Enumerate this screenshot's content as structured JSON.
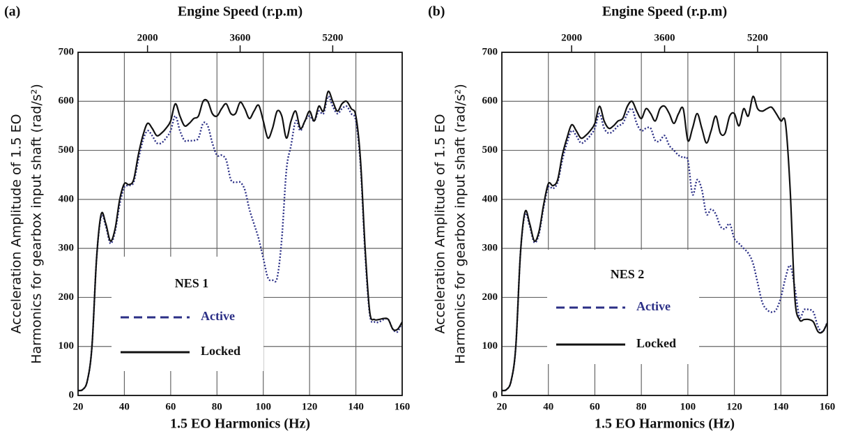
{
  "chart_data": [
    {
      "type": "line",
      "label": "(a)",
      "top_xlabel": "Engine Speed (r.p.m)",
      "xlabel": "1.5 EO Harmonics (Hz)",
      "ylabel": [
        "Acceleration Amplitude of 1.5 EO",
        "Harmonics for gearbox input shaft (rad/s²)"
      ],
      "legend_title": "NES 1",
      "grid": true,
      "xlim": [
        20,
        160
      ],
      "xticks": [
        20,
        40,
        60,
        80,
        100,
        120,
        140,
        160
      ],
      "x2lim": [
        800,
        6400
      ],
      "x2ticks": [
        2000,
        3600,
        5200
      ],
      "ylim": [
        0,
        700
      ],
      "yticks": [
        0,
        100,
        200,
        300,
        400,
        500,
        600,
        700
      ],
      "x": [
        20,
        22,
        24,
        26,
        28,
        30,
        32,
        34,
        36,
        38,
        40,
        42,
        44,
        46,
        48,
        50,
        52,
        54,
        56,
        58,
        60,
        62,
        64,
        66,
        68,
        70,
        72,
        74,
        76,
        78,
        80,
        82,
        84,
        86,
        88,
        90,
        92,
        94,
        96,
        98,
        100,
        102,
        104,
        106,
        108,
        110,
        112,
        114,
        116,
        118,
        120,
        122,
        124,
        126,
        128,
        130,
        132,
        134,
        136,
        138,
        140,
        142,
        144,
        146,
        148,
        150,
        152,
        154,
        156,
        158,
        160
      ],
      "series": [
        {
          "name": "Active",
          "color": "#2b2f86",
          "style": "dotted",
          "values": [
            10,
            12,
            30,
            100,
            280,
            365,
            345,
            310,
            335,
            390,
            425,
            428,
            435,
            480,
            520,
            540,
            530,
            515,
            515,
            525,
            540,
            570,
            540,
            520,
            520,
            520,
            525,
            555,
            550,
            515,
            490,
            490,
            480,
            440,
            435,
            435,
            420,
            380,
            350,
            320,
            280,
            240,
            235,
            240,
            320,
            460,
            510,
            560,
            540,
            560,
            570,
            560,
            580,
            575,
            610,
            590,
            575,
            585,
            590,
            575,
            560,
            470,
            290,
            165,
            150,
            150,
            155,
            155,
            135,
            130,
            150
          ]
        },
        {
          "name": "Locked",
          "color": "#111111",
          "style": "solid",
          "values": [
            10,
            12,
            30,
            100,
            280,
            370,
            350,
            315,
            340,
            400,
            432,
            430,
            440,
            490,
            530,
            555,
            545,
            530,
            535,
            545,
            560,
            595,
            570,
            550,
            555,
            565,
            570,
            600,
            600,
            575,
            570,
            585,
            595,
            575,
            575,
            598,
            585,
            565,
            580,
            592,
            560,
            525,
            545,
            580,
            570,
            525,
            560,
            580,
            545,
            560,
            580,
            560,
            590,
            580,
            620,
            600,
            580,
            595,
            600,
            585,
            570,
            480,
            300,
            170,
            155,
            155,
            157,
            155,
            135,
            135,
            150
          ]
        }
      ]
    },
    {
      "type": "line",
      "label": "(b)",
      "top_xlabel": "Engine Speed (r.p.m)",
      "xlabel": "1.5 EO Harmonics (Hz)",
      "ylabel": [
        "Acceleration Amplitude of 1.5 EO",
        "Harmonics for gearbox input shaft (rad/s²)"
      ],
      "legend_title": "NES 2",
      "grid": true,
      "xlim": [
        20,
        160
      ],
      "xticks": [
        20,
        40,
        60,
        80,
        100,
        120,
        140,
        160
      ],
      "x2lim": [
        800,
        6400
      ],
      "x2ticks": [
        2000,
        3600,
        5200
      ],
      "ylim": [
        0,
        700
      ],
      "yticks": [
        0,
        100,
        200,
        300,
        400,
        500,
        600,
        700
      ],
      "x": [
        20,
        22,
        24,
        26,
        28,
        30,
        32,
        34,
        36,
        38,
        40,
        42,
        44,
        46,
        48,
        50,
        52,
        54,
        56,
        58,
        60,
        62,
        64,
        66,
        68,
        70,
        72,
        74,
        76,
        78,
        80,
        82,
        84,
        86,
        88,
        90,
        92,
        94,
        96,
        98,
        100,
        102,
        104,
        106,
        108,
        110,
        112,
        114,
        116,
        118,
        120,
        122,
        124,
        126,
        128,
        130,
        132,
        134,
        136,
        138,
        140,
        142,
        144,
        146,
        148,
        150,
        152,
        154,
        156,
        158,
        160
      ],
      "series": [
        {
          "name": "Active",
          "color": "#2b2f86",
          "style": "dotted",
          "values": [
            10,
            12,
            30,
            100,
            290,
            370,
            345,
            312,
            330,
            385,
            425,
            422,
            435,
            480,
            515,
            540,
            530,
            515,
            520,
            530,
            545,
            575,
            545,
            535,
            540,
            550,
            555,
            575,
            585,
            555,
            540,
            545,
            545,
            520,
            520,
            530,
            510,
            500,
            490,
            485,
            480,
            410,
            440,
            420,
            370,
            380,
            370,
            345,
            340,
            350,
            320,
            310,
            300,
            290,
            270,
            230,
            190,
            175,
            170,
            175,
            200,
            240,
            265,
            220,
            160,
            175,
            175,
            170,
            140,
            130,
            150
          ]
        },
        {
          "name": "Locked",
          "color": "#111111",
          "style": "solid",
          "values": [
            10,
            12,
            30,
            100,
            290,
            375,
            350,
            315,
            335,
            390,
            432,
            428,
            440,
            490,
            525,
            552,
            540,
            525,
            530,
            540,
            555,
            590,
            560,
            545,
            550,
            560,
            565,
            590,
            600,
            580,
            565,
            585,
            575,
            560,
            585,
            590,
            575,
            555,
            575,
            585,
            520,
            545,
            575,
            545,
            515,
            540,
            570,
            535,
            535,
            570,
            575,
            550,
            585,
            570,
            610,
            585,
            580,
            585,
            588,
            575,
            560,
            555,
            420,
            200,
            155,
            155,
            155,
            150,
            130,
            130,
            148
          ]
        }
      ]
    }
  ]
}
